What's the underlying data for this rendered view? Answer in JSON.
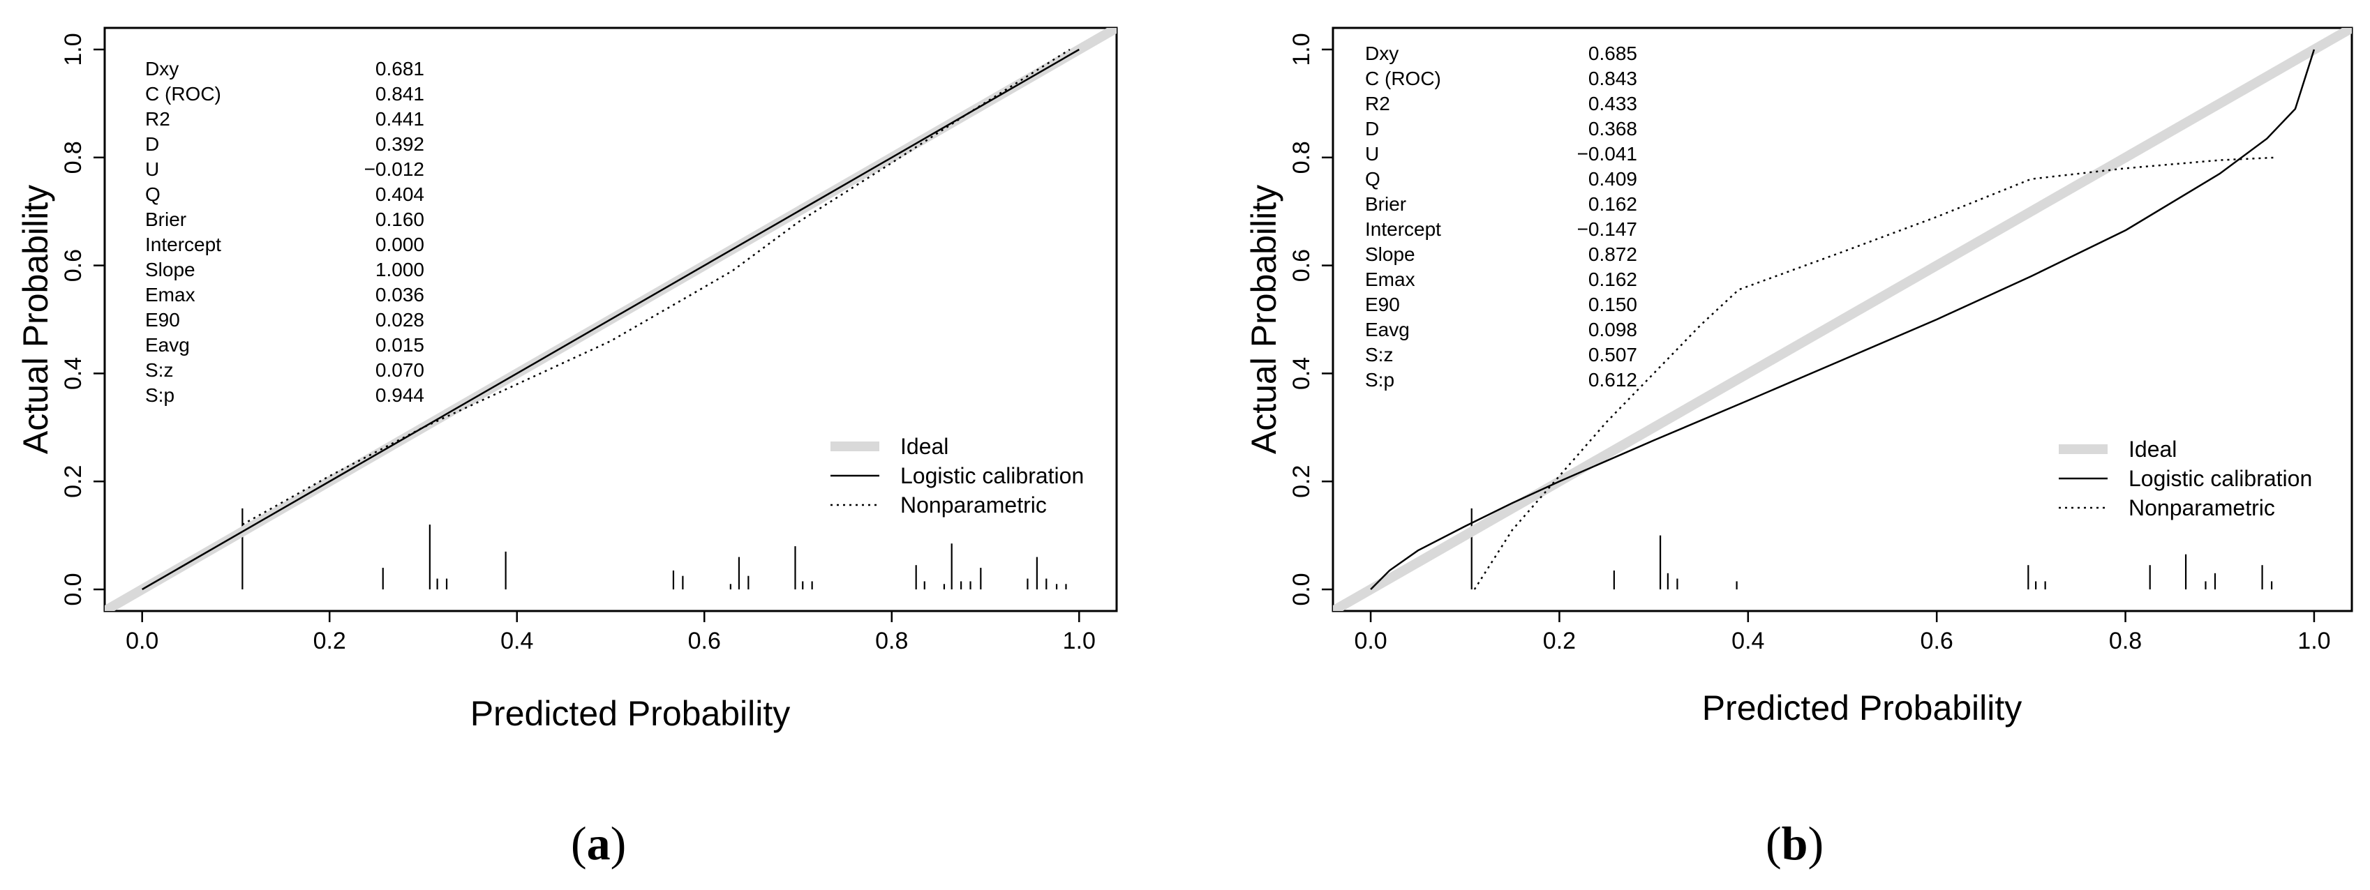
{
  "chart_data": [
    {
      "type": "line",
      "panel_label": "a",
      "xlabel": "Predicted Probability",
      "ylabel": "Actual Probability",
      "xlim": [
        -0.04,
        1.04
      ],
      "ylim": [
        -0.04,
        1.04
      ],
      "xticks": [
        "0.0",
        "0.2",
        "0.4",
        "0.6",
        "0.8",
        "1.0"
      ],
      "yticks": [
        "0.0",
        "0.2",
        "0.4",
        "0.6",
        "0.8",
        "1.0"
      ],
      "legend": {
        "position": "bottom-right",
        "entries": [
          "Ideal",
          "Logistic calibration",
          "Nonparametric"
        ]
      },
      "stats": [
        {
          "name": "Dxy",
          "value": "0.681"
        },
        {
          "name": "C (ROC)",
          "value": "0.841"
        },
        {
          "name": "R2",
          "value": "0.441"
        },
        {
          "name": "D",
          "value": "0.392"
        },
        {
          "name": "U",
          "value": "−0.012"
        },
        {
          "name": "Q",
          "value": "0.404"
        },
        {
          "name": "Brier",
          "value": "0.160"
        },
        {
          "name": "Intercept",
          "value": "0.000"
        },
        {
          "name": "Slope",
          "value": "1.000"
        },
        {
          "name": "Emax",
          "value": "0.036"
        },
        {
          "name": "E90",
          "value": "0.028"
        },
        {
          "name": "Eavg",
          "value": "0.015"
        },
        {
          "name": "S:z",
          "value": "0.070"
        },
        {
          "name": "S:p",
          "value": "0.944"
        }
      ],
      "series": [
        {
          "name": "Ideal",
          "x": [
            -0.04,
            1.04
          ],
          "y": [
            -0.04,
            1.04
          ]
        },
        {
          "name": "Logistic calibration",
          "x": [
            0.0,
            1.0
          ],
          "y": [
            0.0,
            1.0
          ]
        },
        {
          "name": "Nonparametric",
          "x": [
            0.107,
            0.2,
            0.3,
            0.4,
            0.5,
            0.57,
            0.63,
            0.7,
            0.8,
            0.88,
            0.99
          ],
          "y": [
            0.12,
            0.21,
            0.3,
            0.38,
            0.46,
            0.53,
            0.59,
            0.68,
            0.79,
            0.88,
            1.0
          ]
        }
      ],
      "rug": [
        {
          "x": 0.107,
          "h": 0.15
        },
        {
          "x": 0.257,
          "h": 0.04
        },
        {
          "x": 0.307,
          "h": 0.12
        },
        {
          "x": 0.315,
          "h": 0.02
        },
        {
          "x": 0.325,
          "h": 0.02
        },
        {
          "x": 0.388,
          "h": 0.07
        },
        {
          "x": 0.567,
          "h": 0.035
        },
        {
          "x": 0.577,
          "h": 0.025
        },
        {
          "x": 0.628,
          "h": 0.01
        },
        {
          "x": 0.637,
          "h": 0.06
        },
        {
          "x": 0.647,
          "h": 0.025
        },
        {
          "x": 0.697,
          "h": 0.08
        },
        {
          "x": 0.705,
          "h": 0.015
        },
        {
          "x": 0.715,
          "h": 0.015
        },
        {
          "x": 0.826,
          "h": 0.045
        },
        {
          "x": 0.835,
          "h": 0.015
        },
        {
          "x": 0.856,
          "h": 0.01
        },
        {
          "x": 0.864,
          "h": 0.085
        },
        {
          "x": 0.874,
          "h": 0.015
        },
        {
          "x": 0.884,
          "h": 0.015
        },
        {
          "x": 0.895,
          "h": 0.04
        },
        {
          "x": 0.945,
          "h": 0.02
        },
        {
          "x": 0.955,
          "h": 0.06
        },
        {
          "x": 0.965,
          "h": 0.02
        },
        {
          "x": 0.976,
          "h": 0.01
        },
        {
          "x": 0.986,
          "h": 0.01
        }
      ]
    },
    {
      "type": "line",
      "panel_label": "b",
      "xlabel": "Predicted Probability",
      "ylabel": "Actual Probability",
      "xlim": [
        -0.04,
        1.04
      ],
      "ylim": [
        -0.04,
        1.04
      ],
      "xticks": [
        "0.0",
        "0.2",
        "0.4",
        "0.6",
        "0.8",
        "1.0"
      ],
      "yticks": [
        "0.0",
        "0.2",
        "0.4",
        "0.6",
        "0.8",
        "1.0"
      ],
      "legend": {
        "position": "bottom-right",
        "entries": [
          "Ideal",
          "Logistic calibration",
          "Nonparametric"
        ]
      },
      "stats": [
        {
          "name": "Dxy",
          "value": "0.685"
        },
        {
          "name": "C (ROC)",
          "value": "0.843"
        },
        {
          "name": "R2",
          "value": "0.433"
        },
        {
          "name": "D",
          "value": "0.368"
        },
        {
          "name": "U",
          "value": "−0.041"
        },
        {
          "name": "Q",
          "value": "0.409"
        },
        {
          "name": "Brier",
          "value": "0.162"
        },
        {
          "name": "Intercept",
          "value": "−0.147"
        },
        {
          "name": "Slope",
          "value": "0.872"
        },
        {
          "name": "Emax",
          "value": "0.162"
        },
        {
          "name": "E90",
          "value": "0.150"
        },
        {
          "name": "Eavg",
          "value": "0.098"
        },
        {
          "name": "S:z",
          "value": "0.507"
        },
        {
          "name": "S:p",
          "value": "0.612"
        }
      ],
      "series": [
        {
          "name": "Ideal",
          "x": [
            -0.04,
            1.04
          ],
          "y": [
            -0.04,
            1.04
          ]
        },
        {
          "name": "Logistic calibration",
          "x": [
            0.0,
            0.02,
            0.05,
            0.1,
            0.15,
            0.2,
            0.3,
            0.4,
            0.5,
            0.6,
            0.7,
            0.8,
            0.9,
            0.95,
            0.98,
            1.0
          ],
          "y": [
            0.0,
            0.035,
            0.072,
            0.117,
            0.16,
            0.2,
            0.276,
            0.35,
            0.425,
            0.5,
            0.58,
            0.665,
            0.77,
            0.835,
            0.89,
            1.0
          ]
        },
        {
          "name": "Nonparametric",
          "x": [
            0.11,
            0.15,
            0.2,
            0.25,
            0.3,
            0.35,
            0.39,
            0.5,
            0.6,
            0.7,
            0.8,
            0.9,
            0.96
          ],
          "y": [
            0.0,
            0.11,
            0.21,
            0.31,
            0.4,
            0.49,
            0.555,
            0.625,
            0.69,
            0.76,
            0.78,
            0.795,
            0.8
          ]
        }
      ],
      "rug": [
        {
          "x": 0.107,
          "h": 0.15
        },
        {
          "x": 0.258,
          "h": 0.035
        },
        {
          "x": 0.307,
          "h": 0.1
        },
        {
          "x": 0.315,
          "h": 0.03
        },
        {
          "x": 0.325,
          "h": 0.02
        },
        {
          "x": 0.388,
          "h": 0.015
        },
        {
          "x": 0.697,
          "h": 0.045
        },
        {
          "x": 0.705,
          "h": 0.015
        },
        {
          "x": 0.715,
          "h": 0.015
        },
        {
          "x": 0.826,
          "h": 0.045
        },
        {
          "x": 0.864,
          "h": 0.065
        },
        {
          "x": 0.885,
          "h": 0.015
        },
        {
          "x": 0.895,
          "h": 0.03
        },
        {
          "x": 0.945,
          "h": 0.045
        },
        {
          "x": 0.955,
          "h": 0.015
        }
      ]
    }
  ]
}
